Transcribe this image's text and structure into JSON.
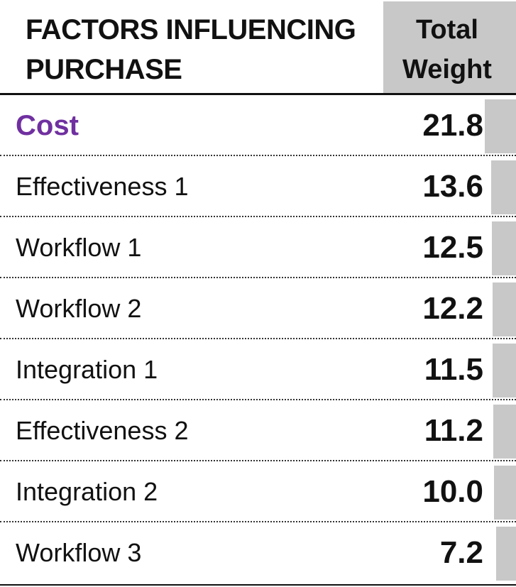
{
  "header": {
    "title_line1": "FACTORS INFLUENCING",
    "title_line2": "PURCHASE",
    "weight_line1": "Total",
    "weight_line2": "Weight"
  },
  "colors": {
    "highlight": "#7030a0",
    "bar": "#c8c8c8",
    "text": "#111111"
  },
  "chart_data": {
    "type": "table",
    "columns": [
      "FACTORS INFLUENCING PURCHASE",
      "Total Weight"
    ],
    "rows": [
      {
        "factor": "Cost",
        "weight": "21.8",
        "value": 21.8,
        "highlight": true
      },
      {
        "factor": "Effectiveness 1",
        "weight": "13.6",
        "value": 13.6,
        "highlight": false
      },
      {
        "factor": "Workflow 1",
        "weight": "12.5",
        "value": 12.5,
        "highlight": false
      },
      {
        "factor": "Workflow 2",
        "weight": "12.2",
        "value": 12.2,
        "highlight": false
      },
      {
        "factor": "Integration 1",
        "weight": "11.5",
        "value": 11.5,
        "highlight": false
      },
      {
        "factor": "Effectiveness 2",
        "weight": "11.2",
        "value": 11.2,
        "highlight": false
      },
      {
        "factor": "Integration 2",
        "weight": "10.0",
        "value": 10.0,
        "highlight": false
      },
      {
        "factor": "Workflow 3",
        "weight": "7.2",
        "value": 7.2,
        "highlight": false
      }
    ]
  }
}
